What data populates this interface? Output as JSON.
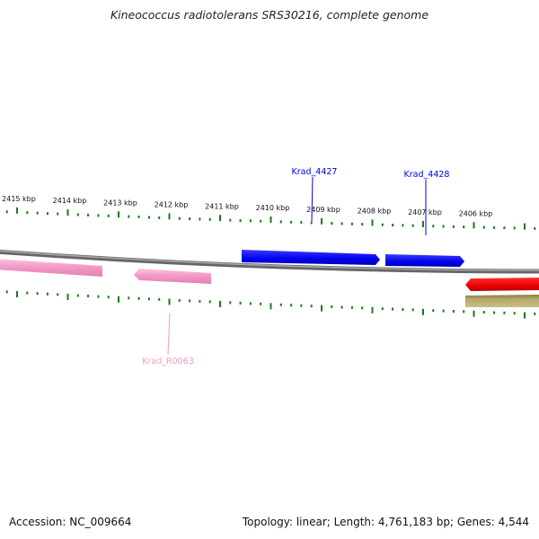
{
  "header": {
    "title": "Kineococcus radiotolerans SRS30216, complete genome"
  },
  "footer": {
    "accession": "Accession: NC_009664",
    "summary": "Topology: linear; Length: 4,761,183 bp; Genes: 4,544"
  },
  "ruler": {
    "labels": [
      "2415 kbp",
      "2414 kbp",
      "2413 kbp",
      "2412 kbp",
      "2411 kbp",
      "2410 kbp",
      "2409 kbp",
      "2408 kbp",
      "2407 kbp",
      "2406 kbp"
    ],
    "tick_color": "#1a7a1a"
  },
  "features": {
    "krad_4427": {
      "label": "Krad_4427",
      "color": "#0000ee"
    },
    "krad_4428": {
      "label": "Krad_4428",
      "color": "#0000ee"
    },
    "krad_r0063": {
      "label": "Krad_R0063",
      "color": "#f29ac6"
    },
    "pink_left": {
      "color": "#f29ac6"
    },
    "red_right": {
      "color": "#ee0000"
    },
    "olive_right": {
      "color": "#b5a96a"
    }
  },
  "backbone": {
    "color": "#808080"
  }
}
